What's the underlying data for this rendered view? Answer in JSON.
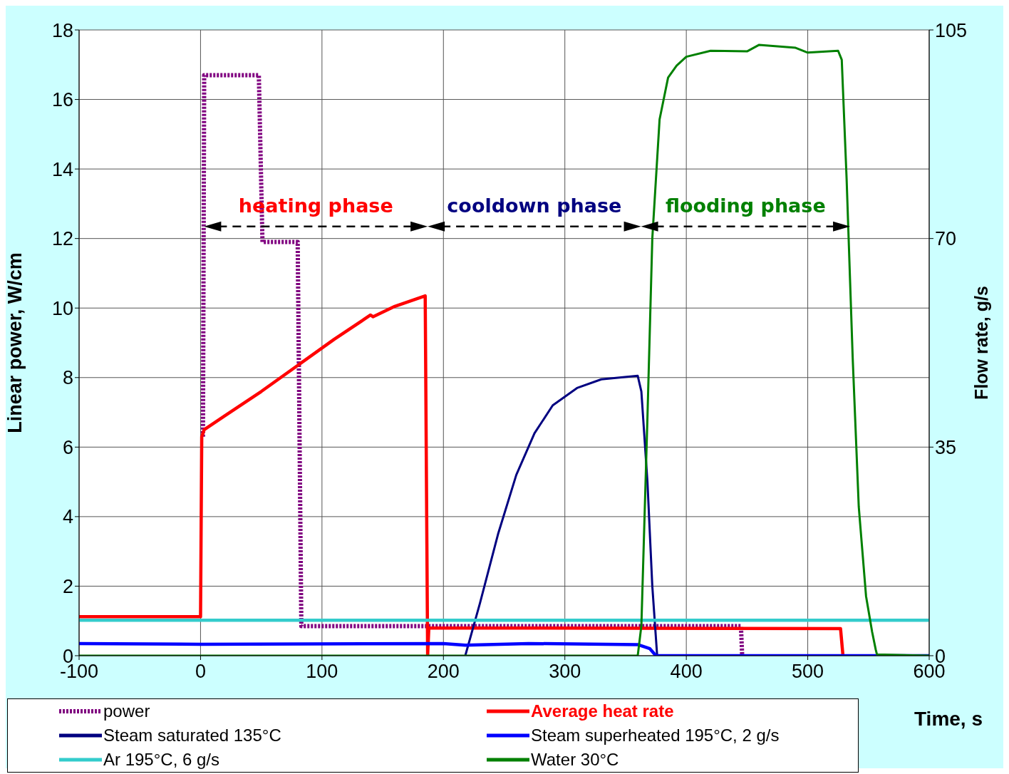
{
  "chart_data": {
    "type": "line",
    "xlabel": "Time, s",
    "ylabel": "Linear power, W/cm",
    "y2label": "Flow rate, g/s",
    "xlim": [
      -100,
      600
    ],
    "xticks": [
      -100,
      0,
      100,
      200,
      300,
      400,
      500,
      600
    ],
    "ylim": [
      0,
      18
    ],
    "yticks": [
      0,
      2,
      4,
      6,
      8,
      10,
      12,
      14,
      16,
      18
    ],
    "y2lim": [
      0,
      105
    ],
    "y2ticks": [
      0,
      35,
      70,
      105
    ],
    "grid": true,
    "legend": "bottom",
    "marker": "none",
    "annotations": [
      "heating phase",
      "cooldown phase",
      "flooding phase"
    ],
    "series": [
      {
        "name": "power",
        "color": "#800080",
        "line_style": "dotted",
        "x": [
          2,
          3,
          48,
          51,
          80,
          83,
          445,
          446
        ],
        "values": [
          6.3,
          16.7,
          16.7,
          11.9,
          11.9,
          0.85,
          0.85,
          0
        ]
      },
      {
        "name": "Average heat rate",
        "color": "#ff0000",
        "x": [
          -100,
          0,
          1,
          3,
          20,
          50,
          80,
          110,
          140,
          142,
          160,
          185,
          187,
          188,
          527,
          529
        ],
        "values": [
          1.12,
          1.12,
          6.3,
          6.5,
          6.9,
          7.6,
          8.35,
          9.1,
          9.8,
          9.75,
          10.05,
          10.35,
          0,
          0.8,
          0.78,
          0
        ]
      },
      {
        "name": "Steam saturated 135°C",
        "color": "#000080",
        "x": [
          218,
          230,
          245,
          260,
          275,
          290,
          310,
          330,
          360,
          363,
          368,
          372,
          376,
          600
        ],
        "values": [
          0,
          1.5,
          3.5,
          5.2,
          6.4,
          7.2,
          7.7,
          7.95,
          8.05,
          7.6,
          5,
          2,
          0,
          0
        ]
      },
      {
        "name": "Steam superheated 195°C, 2 g/s",
        "color": "#0000ff",
        "x": [
          -100,
          0,
          200,
          218,
          270,
          360,
          370,
          375,
          600
        ],
        "values": [
          0.35,
          0.33,
          0.35,
          0.3,
          0.35,
          0.32,
          0.2,
          0,
          0
        ]
      },
      {
        "name": "Ar 195°C, 6 g/s",
        "color": "#33cccc",
        "x": [
          -100,
          600
        ],
        "values": [
          1.02,
          1.02
        ]
      },
      {
        "name": "Water 30°C",
        "color": "#008000",
        "axis": "y2",
        "x": [
          -100,
          360,
          363,
          368,
          372,
          378,
          385,
          392,
          400,
          420,
          450,
          460,
          490,
          500,
          525,
          528,
          532,
          537,
          542,
          548,
          553,
          556,
          557,
          600
        ],
        "values": [
          0,
          0,
          5,
          40,
          70,
          90,
          97,
          99,
          100.5,
          101.5,
          101.4,
          102.5,
          102,
          101.2,
          101.5,
          100,
          80,
          50,
          25,
          10,
          4,
          1,
          0.2,
          0
        ]
      }
    ]
  }
}
